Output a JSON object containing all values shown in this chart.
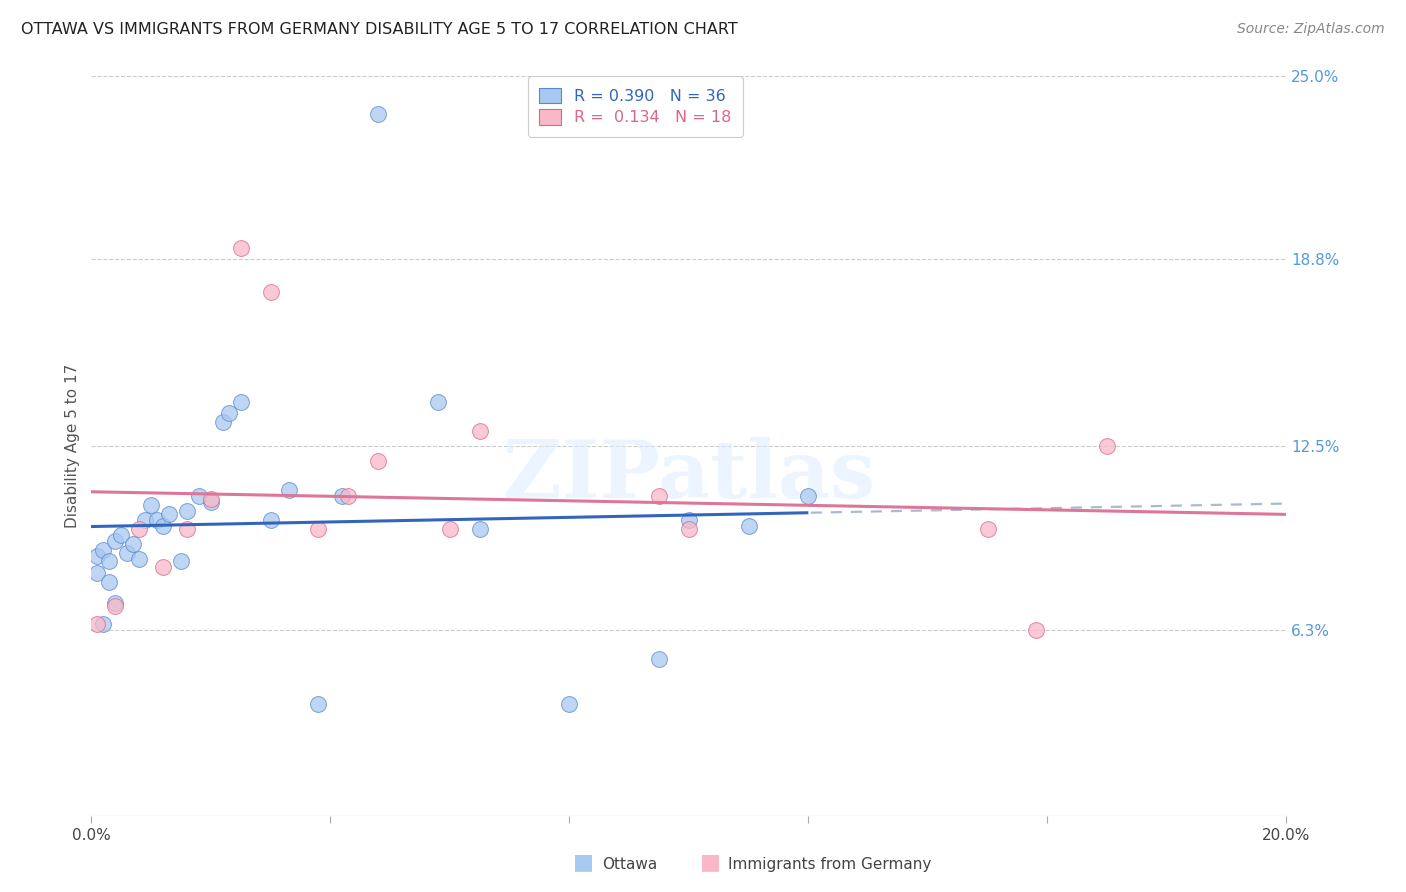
{
  "title": "OTTAWA VS IMMIGRANTS FROM GERMANY DISABILITY AGE 5 TO 17 CORRELATION CHART",
  "source": "Source: ZipAtlas.com",
  "ylabel": "Disability Age 5 to 17",
  "xlim": [
    0.0,
    0.2
  ],
  "ylim": [
    0.0,
    0.25
  ],
  "x_tick_positions": [
    0.0,
    0.04,
    0.08,
    0.12,
    0.16,
    0.2
  ],
  "x_tick_labels": [
    "0.0%",
    "",
    "",
    "",
    "",
    "20.0%"
  ],
  "y_tick_vals_right": [
    0.25,
    0.188,
    0.125,
    0.063
  ],
  "y_tick_labels_right": [
    "25.0%",
    "18.8%",
    "12.5%",
    "6.3%"
  ],
  "ottawa_fill_color": "#A8C8F0",
  "ottawa_edge_color": "#5588CC",
  "germany_fill_color": "#F8B8C8",
  "germany_edge_color": "#DD6688",
  "trend_ottawa_solid_color": "#3366BB",
  "trend_ottawa_dash_color": "#AABBCC",
  "trend_germany_color": "#DD7799",
  "background_color": "#FFFFFF",
  "grid_color": "#CCCCCC",
  "r_ottawa": "0.390",
  "n_ottawa": "36",
  "r_germany": "0.134",
  "n_germany": "18",
  "watermark": "ZIPatlas",
  "legend_labels": [
    "Ottawa",
    "Immigrants from Germany"
  ],
  "ottawa_x": [
    0.001,
    0.002,
    0.003,
    0.003,
    0.004,
    0.005,
    0.005,
    0.006,
    0.007,
    0.008,
    0.009,
    0.01,
    0.011,
    0.012,
    0.013,
    0.014,
    0.015,
    0.016,
    0.017,
    0.018,
    0.02,
    0.022,
    0.024,
    0.028,
    0.03,
    0.035,
    0.04,
    0.045,
    0.05,
    0.06,
    0.065,
    0.08,
    0.095,
    0.1,
    0.11,
    0.12
  ],
  "ottawa_y": [
    0.088,
    0.085,
    0.09,
    0.082,
    0.086,
    0.092,
    0.08,
    0.088,
    0.091,
    0.087,
    0.093,
    0.1,
    0.105,
    0.096,
    0.099,
    0.086,
    0.084,
    0.1,
    0.108,
    0.106,
    0.105,
    0.132,
    0.136,
    0.141,
    0.1,
    0.038,
    0.108,
    0.236,
    0.132,
    0.14,
    0.097,
    0.038,
    0.05,
    0.1,
    0.097,
    0.108
  ],
  "germany_x": [
    0.001,
    0.004,
    0.007,
    0.012,
    0.016,
    0.018,
    0.025,
    0.03,
    0.035,
    0.04,
    0.045,
    0.06,
    0.065,
    0.095,
    0.1,
    0.15,
    0.155,
    0.17
  ],
  "germany_y": [
    0.065,
    0.072,
    0.097,
    0.085,
    0.097,
    0.107,
    0.19,
    0.176,
    0.097,
    0.107,
    0.12,
    0.097,
    0.13,
    0.108,
    0.097,
    0.097,
    0.063,
    0.125
  ]
}
